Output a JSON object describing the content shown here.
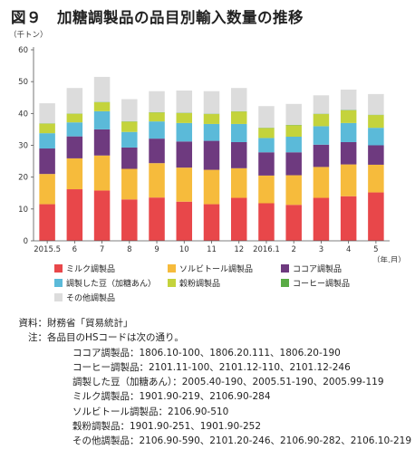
{
  "title": "図９　加糖調製品の品目別輸入数量の推移",
  "chart_data": {
    "type": "bar",
    "stacked": true,
    "ylabel": "（千トン）",
    "xlabel": "（年.月）",
    "ylim": [
      0,
      60
    ],
    "yticks": [
      0,
      10,
      20,
      30,
      40,
      50,
      60
    ],
    "grid": false,
    "legend_position": "bottom",
    "categories": [
      "2015.5",
      "6",
      "7",
      "8",
      "9",
      "10",
      "11",
      "12",
      "2016.1",
      "2",
      "3",
      "4",
      "5"
    ],
    "series": [
      {
        "name": "ミルク調製品",
        "color": "#e8474a",
        "values": [
          11.5,
          16.2,
          15.8,
          13.0,
          13.6,
          12.3,
          11.5,
          13.5,
          11.8,
          11.3,
          13.5,
          14.0,
          15.2
        ]
      },
      {
        "name": "ソルビトール調製品",
        "color": "#f6bb3c",
        "values": [
          9.5,
          9.7,
          11.0,
          9.6,
          10.8,
          10.7,
          10.8,
          9.3,
          8.7,
          9.3,
          9.7,
          10.0,
          8.7
        ]
      },
      {
        "name": "ココア調製品",
        "color": "#6e3a7f",
        "values": [
          8.0,
          6.9,
          8.2,
          6.7,
          7.7,
          8.2,
          9.1,
          8.2,
          7.3,
          7.2,
          7.0,
          7.0,
          6.1
        ]
      },
      {
        "name": "調製した豆（加糖あん）",
        "color": "#5bbad9",
        "values": [
          4.8,
          4.4,
          5.7,
          4.9,
          5.4,
          5.8,
          5.3,
          5.7,
          4.5,
          4.9,
          5.8,
          6.0,
          5.5
        ]
      },
      {
        "name": "穀粉調製品",
        "color": "#c4d33c",
        "values": [
          3.0,
          2.7,
          2.8,
          3.2,
          2.8,
          3.1,
          3.1,
          3.9,
          3.1,
          3.6,
          3.8,
          4.0,
          4.0
        ]
      },
      {
        "name": "コーヒー調製品",
        "color": "#5aab45",
        "values": [
          0.1,
          0.1,
          0.1,
          0.1,
          0.1,
          0.1,
          0.1,
          0.1,
          0.1,
          0.1,
          0.1,
          0.1,
          0.1
        ]
      },
      {
        "name": "その他調製品",
        "color": "#dcdcdc",
        "values": [
          6.3,
          8.0,
          7.9,
          7.0,
          6.6,
          7.0,
          7.1,
          7.3,
          6.8,
          6.6,
          5.8,
          6.4,
          6.5
        ]
      }
    ]
  },
  "notes": {
    "source_label": "資料：",
    "source_text": "財務省「貿易統計」",
    "note_label": "注：",
    "note_intro": "各品目のHSコードは次の通り。",
    "items": [
      "ココア調製品：1806.10-100、1806.20.111、1806.20-190",
      "コーヒー調製品：2101.11-100、2101.12-110、2101.12-246",
      "調製した豆（加糖あん）：2005.40-190、2005.51-190、2005.99-119",
      "ミルク調製品：1901.90-219、2106.90-284",
      "ソルビトール調製品：2106.90-510",
      "穀粉調製品：1901.90-251、1901.90-252",
      "その他調製品：2106.90-590、2101.20-246、2106.90-282、2106.10-219"
    ]
  }
}
